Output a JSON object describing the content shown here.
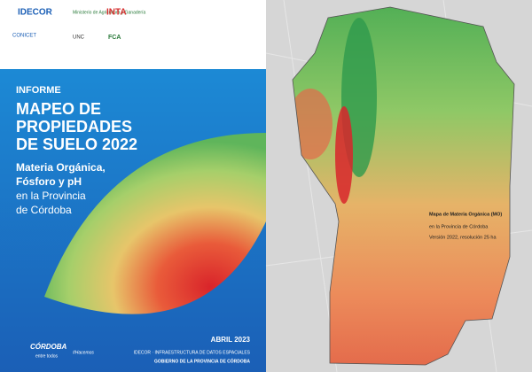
{
  "header": {
    "logos": [
      "IDECOR",
      "Ministerio de Agricultura y Ganadería",
      "INTA",
      "CONICET",
      "UNC",
      "FCA"
    ]
  },
  "cover": {
    "label": "INFORME",
    "title_lines": [
      "MAPEO DE",
      "PROPIEDADES",
      "DE SUELO 2022"
    ],
    "subtitle_lines": [
      "Materia Orgánica,",
      "Fósforo y pH"
    ],
    "location_lines": [
      "en la Provincia",
      "de Córdoba"
    ]
  },
  "footer": {
    "date": "ABRIL 2023",
    "brand": "CÓRDOBA",
    "brand_tag": "entre todos",
    "hashtag": "#Hacemos",
    "lines": [
      "IDECOR · INFRAESTRUCTURA DE DATOS ESPACIALES",
      "GOBIERNO DE LA PROVINCIA DE CÓRDOBA"
    ]
  },
  "map": {
    "caption_lines": [
      "Mapa de Materia Orgánica (MO)",
      "en la Provincia de Córdoba",
      "Versión 2022, resolución 25 ha"
    ]
  }
}
